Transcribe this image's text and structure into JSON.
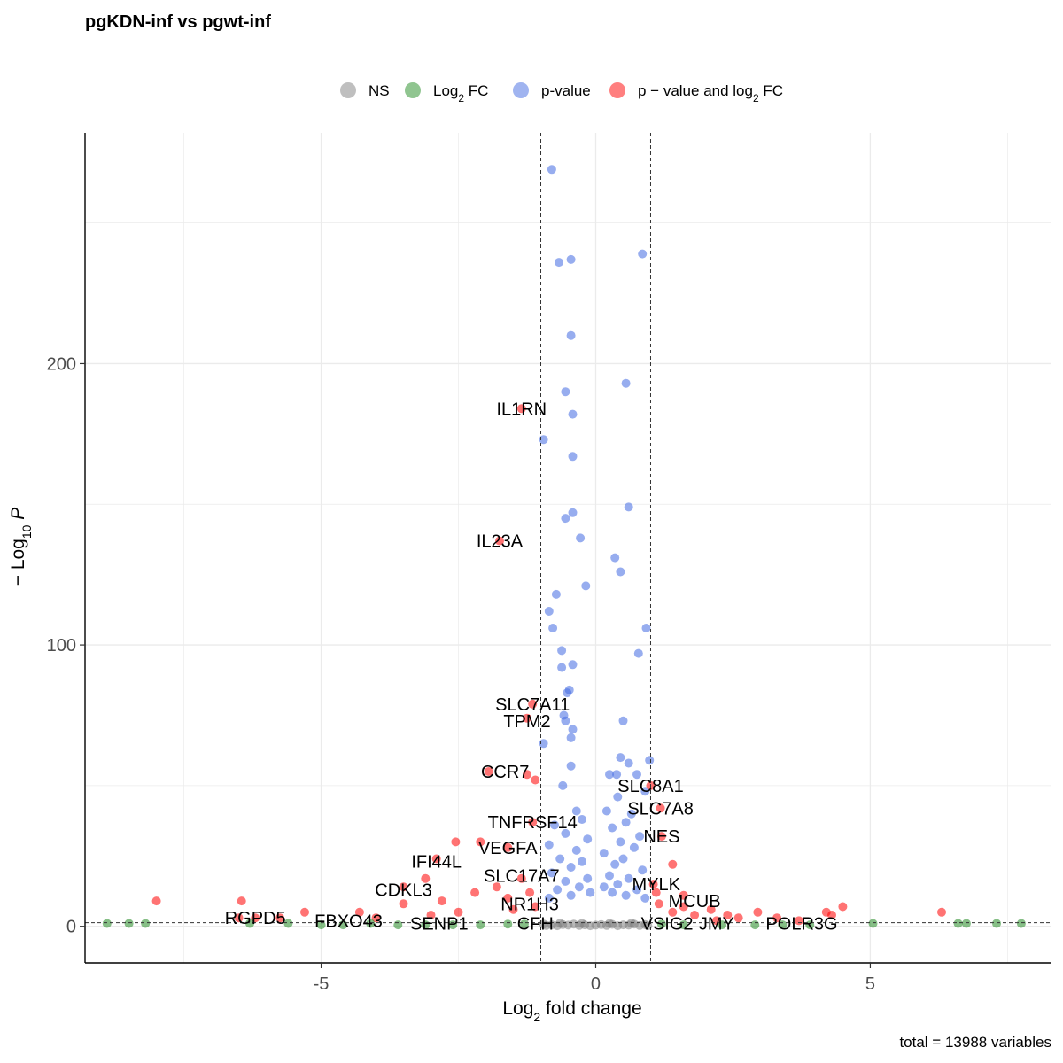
{
  "chart_data": {
    "type": "scatter",
    "title": "pgKDN-inf vs pgwt-inf",
    "xlabel_parts": [
      "Log",
      "2",
      " fold change"
    ],
    "ylabel_parts": [
      "− Log",
      "10",
      " P"
    ],
    "caption": "total = 13988 variables",
    "xlim": [
      -9.3,
      8.3
    ],
    "ylim": [
      -13,
      282
    ],
    "x_ticks": [
      -5,
      0,
      5
    ],
    "x_tick_labels": [
      "-5",
      "0",
      "5"
    ],
    "y_ticks": [
      0,
      100,
      200
    ],
    "y_tick_labels": [
      "0",
      "100",
      "200"
    ],
    "fc_cutoff": [
      -1,
      1
    ],
    "p_cutoff_log10": 1.3,
    "grid": true,
    "legend_position": "top",
    "legend": [
      {
        "key": "NS",
        "label_parts": [
          "NS"
        ],
        "color": "#808080"
      },
      {
        "key": "FC",
        "label_parts": [
          "Log",
          "2",
          " FC"
        ],
        "color": "#228b22"
      },
      {
        "key": "P",
        "label_parts": [
          "p-value"
        ],
        "color": "#4169e1"
      },
      {
        "key": "PFC",
        "label_parts": [
          "p − value and log",
          "2",
          " FC"
        ],
        "color": "#ff0000"
      }
    ],
    "series": [
      {
        "key": "P",
        "points": [
          [
            -0.8,
            269
          ],
          [
            0.85,
            239
          ],
          [
            -0.67,
            236
          ],
          [
            -0.45,
            237
          ],
          [
            -0.45,
            210
          ],
          [
            0.55,
            193
          ],
          [
            -0.55,
            190
          ],
          [
            -0.42,
            182
          ],
          [
            -0.95,
            173
          ],
          [
            -0.42,
            167
          ],
          [
            0.6,
            149
          ],
          [
            -0.42,
            147
          ],
          [
            -0.55,
            145
          ],
          [
            -0.28,
            138
          ],
          [
            0.35,
            131
          ],
          [
            0.45,
            126
          ],
          [
            -0.18,
            121
          ],
          [
            -0.72,
            118
          ],
          [
            -0.85,
            112
          ],
          [
            -0.78,
            106
          ],
          [
            0.92,
            106
          ],
          [
            -0.62,
            98
          ],
          [
            0.78,
            97
          ],
          [
            -0.42,
            93
          ],
          [
            -0.62,
            92
          ],
          [
            -0.48,
            84
          ],
          [
            -0.52,
            83
          ],
          [
            -0.58,
            75
          ],
          [
            -0.55,
            73
          ],
          [
            0.5,
            73
          ],
          [
            -0.42,
            70
          ],
          [
            -0.45,
            67
          ],
          [
            -0.95,
            65
          ],
          [
            0.45,
            60
          ],
          [
            0.98,
            59
          ],
          [
            -0.45,
            57
          ],
          [
            0.6,
            58
          ],
          [
            0.25,
            54
          ],
          [
            0.38,
            54
          ],
          [
            0.75,
            54
          ],
          [
            -0.6,
            50
          ],
          [
            0.9,
            48
          ],
          [
            0.4,
            46
          ],
          [
            -0.35,
            41
          ],
          [
            0.2,
            41
          ],
          [
            0.65,
            40
          ],
          [
            -0.25,
            38
          ],
          [
            0.55,
            37
          ],
          [
            -0.75,
            36
          ],
          [
            0.3,
            35
          ],
          [
            -0.55,
            33
          ],
          [
            0.8,
            32
          ],
          [
            -0.15,
            31
          ],
          [
            0.45,
            30
          ],
          [
            -0.85,
            29
          ],
          [
            0.7,
            28
          ],
          [
            -0.35,
            27
          ],
          [
            0.15,
            26
          ],
          [
            -0.65,
            24
          ],
          [
            0.5,
            24
          ],
          [
            -0.25,
            23
          ],
          [
            0.35,
            22
          ],
          [
            -0.45,
            21
          ],
          [
            0.85,
            20
          ],
          [
            -0.8,
            19
          ],
          [
            0.25,
            18
          ],
          [
            -0.15,
            17
          ],
          [
            0.6,
            17
          ],
          [
            -0.55,
            16
          ],
          [
            0.4,
            15
          ],
          [
            -0.3,
            14
          ],
          [
            0.15,
            14
          ],
          [
            -0.7,
            13
          ],
          [
            0.75,
            13
          ],
          [
            -0.1,
            12
          ],
          [
            0.3,
            12
          ],
          [
            -0.45,
            11
          ],
          [
            0.55,
            11
          ],
          [
            -0.85,
            10
          ],
          [
            0.9,
            10
          ]
        ]
      },
      {
        "key": "PFC",
        "points": [
          [
            -1.35,
            184
          ],
          [
            -1.75,
            137
          ],
          [
            -1.15,
            79
          ],
          [
            -1.25,
            74
          ],
          [
            -1.95,
            55
          ],
          [
            -1.25,
            54
          ],
          [
            -1.1,
            52
          ],
          [
            1.0,
            50
          ],
          [
            1.18,
            42
          ],
          [
            -1.15,
            37
          ],
          [
            1.2,
            32
          ],
          [
            -2.55,
            30
          ],
          [
            -2.1,
            30
          ],
          [
            -1.6,
            28
          ],
          [
            -2.9,
            24
          ],
          [
            -3.1,
            17
          ],
          [
            -1.35,
            17
          ],
          [
            1.4,
            22
          ],
          [
            -3.5,
            14
          ],
          [
            -1.6,
            10
          ],
          [
            -8.0,
            9
          ],
          [
            -6.45,
            9
          ],
          [
            6.3,
            5
          ],
          [
            4.5,
            7
          ],
          [
            4.2,
            5
          ],
          [
            2.95,
            5
          ],
          [
            2.6,
            3
          ],
          [
            3.7,
            2
          ],
          [
            1.6,
            11
          ],
          [
            2.1,
            6
          ],
          [
            1.8,
            4
          ],
          [
            -1.8,
            14
          ],
          [
            -2.2,
            12
          ],
          [
            -2.8,
            9
          ],
          [
            -3.5,
            8
          ],
          [
            -4.3,
            5
          ],
          [
            -5.3,
            5
          ],
          [
            -5.75,
            3
          ],
          [
            -6.2,
            3
          ],
          [
            -6.5,
            3
          ],
          [
            -4.0,
            3
          ],
          [
            -3.0,
            4
          ],
          [
            -2.5,
            5
          ],
          [
            -1.5,
            6
          ],
          [
            1.4,
            5
          ],
          [
            1.15,
            8
          ],
          [
            2.4,
            4
          ],
          [
            3.3,
            3
          ],
          [
            4.3,
            4
          ],
          [
            -1.2,
            12
          ],
          [
            -1.1,
            7
          ],
          [
            1.1,
            12
          ],
          [
            1.05,
            15
          ],
          [
            1.6,
            7
          ],
          [
            2.2,
            2
          ]
        ]
      },
      {
        "key": "FC",
        "points": [
          [
            -8.9,
            1
          ],
          [
            -8.5,
            1
          ],
          [
            -8.2,
            1
          ],
          [
            -6.3,
            1
          ],
          [
            -5.6,
            1
          ],
          [
            -5.0,
            0.5
          ],
          [
            -4.6,
            0.5
          ],
          [
            -4.1,
            1
          ],
          [
            -3.6,
            0.5
          ],
          [
            -3.1,
            0.5
          ],
          [
            -2.6,
            0.5
          ],
          [
            -2.1,
            0.5
          ],
          [
            -1.6,
            0.8
          ],
          [
            -1.3,
            0.8
          ],
          [
            1.2,
            0.8
          ],
          [
            1.6,
            0.5
          ],
          [
            2.3,
            0.5
          ],
          [
            2.9,
            0.5
          ],
          [
            3.4,
            0.5
          ],
          [
            3.9,
            0.5
          ],
          [
            5.05,
            1
          ],
          [
            6.6,
            1
          ],
          [
            6.75,
            1
          ],
          [
            7.3,
            1
          ],
          [
            7.75,
            1
          ]
        ]
      },
      {
        "key": "NS",
        "points": [
          [
            -0.9,
            0.3
          ],
          [
            -0.8,
            0.5
          ],
          [
            -0.7,
            0.2
          ],
          [
            -0.6,
            0.6
          ],
          [
            -0.5,
            0.4
          ],
          [
            -0.4,
            0.8
          ],
          [
            -0.3,
            0.3
          ],
          [
            -0.2,
            0.5
          ],
          [
            -0.1,
            0.2
          ],
          [
            0.0,
            0.4
          ],
          [
            0.1,
            0.6
          ],
          [
            0.2,
            0.3
          ],
          [
            0.3,
            0.7
          ],
          [
            0.4,
            0.2
          ],
          [
            0.5,
            0.5
          ],
          [
            0.6,
            0.4
          ],
          [
            0.7,
            0.8
          ],
          [
            0.8,
            0.3
          ],
          [
            0.9,
            0.6
          ],
          [
            -0.95,
            0.8
          ],
          [
            0.95,
            0.2
          ],
          [
            -0.65,
            1.1
          ],
          [
            0.65,
            1.1
          ],
          [
            -0.25,
            1.0
          ],
          [
            0.25,
            1.0
          ]
        ]
      }
    ],
    "gene_labels": [
      {
        "text": "IL1RN",
        "x": -1.35,
        "y": 184
      },
      {
        "text": "IL23A",
        "x": -1.75,
        "y": 137
      },
      {
        "text": "SLC7A11",
        "x": -1.15,
        "y": 79
      },
      {
        "text": "TPM2",
        "x": -1.25,
        "y": 73
      },
      {
        "text": "CCR7",
        "x": -1.65,
        "y": 55
      },
      {
        "text": "SLC8A1",
        "x": 1.0,
        "y": 50
      },
      {
        "text": "SLC7A8",
        "x": 1.18,
        "y": 42
      },
      {
        "text": "TNFRSF14",
        "x": -1.15,
        "y": 37
      },
      {
        "text": "NES",
        "x": 1.2,
        "y": 32
      },
      {
        "text": "VEGFA",
        "x": -1.6,
        "y": 28
      },
      {
        "text": "IFI44L",
        "x": -2.9,
        "y": 23
      },
      {
        "text": "SLC17A7",
        "x": -1.35,
        "y": 18
      },
      {
        "text": "MYLK",
        "x": 1.1,
        "y": 15
      },
      {
        "text": "CDKL3",
        "x": -3.5,
        "y": 13
      },
      {
        "text": "MCUB",
        "x": 1.8,
        "y": 9
      },
      {
        "text": "NR1H3",
        "x": -1.2,
        "y": 8
      },
      {
        "text": "RGPD5",
        "x": -6.2,
        "y": 3
      },
      {
        "text": "FBXO43",
        "x": -4.5,
        "y": 2
      },
      {
        "text": "SENP1",
        "x": -2.85,
        "y": 1
      },
      {
        "text": "CFH",
        "x": -1.1,
        "y": 1
      },
      {
        "text": "VSIG2",
        "x": 1.3,
        "y": 1
      },
      {
        "text": "JMY",
        "x": 2.2,
        "y": 1
      },
      {
        "text": "POLR3G",
        "x": 3.75,
        "y": 1
      }
    ]
  }
}
